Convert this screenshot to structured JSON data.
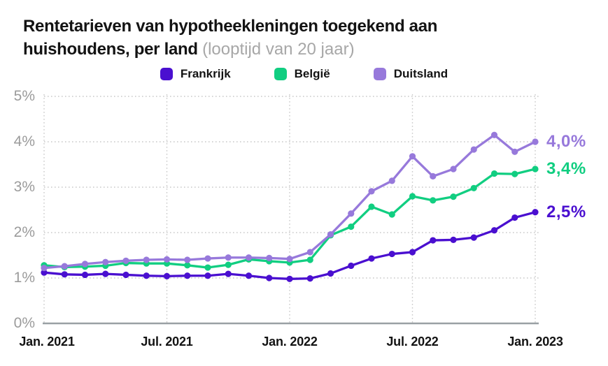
{
  "title": {
    "line1": "Rentetarieven van hypotheekleningen toegekend aan",
    "line2_bold": "huishoudens, per land",
    "subtitle": "(looptijd van 20 jaar)"
  },
  "colors": {
    "frankrijk": "#4a0fd0",
    "belgie": "#11ce81",
    "duitsland": "#9779db",
    "grid": "#c9c9c9",
    "zero_axis": "#9aa0a4",
    "tick_text": "#9b9b9b",
    "title_text": "#131313"
  },
  "chart_data": {
    "type": "line",
    "x_unit": "month",
    "x": [
      "2021-01",
      "2021-02",
      "2021-03",
      "2021-04",
      "2021-05",
      "2021-06",
      "2021-07",
      "2021-08",
      "2021-09",
      "2021-10",
      "2021-11",
      "2021-12",
      "2022-01",
      "2022-02",
      "2022-03",
      "2022-04",
      "2022-05",
      "2022-06",
      "2022-07",
      "2022-08",
      "2022-09",
      "2022-10",
      "2022-11",
      "2022-12",
      "2023-01"
    ],
    "x_tick_labels": [
      "Jan. 2021",
      "Jul. 2021",
      "Jan. 2022",
      "Jul. 2022",
      "Jan. 2023"
    ],
    "x_tick_indices": [
      0,
      6,
      12,
      18,
      24
    ],
    "y_tick_labels": [
      "5%",
      "4%",
      "3%",
      "2%",
      "1%",
      "0%"
    ],
    "ylim": [
      0,
      5
    ],
    "grid": "dotted",
    "legend_position": "top-center",
    "series": [
      {
        "name": "Frankrijk",
        "color": "#4a0fd0",
        "end_label": "2,5%",
        "values": [
          1.12,
          1.08,
          1.07,
          1.09,
          1.07,
          1.05,
          1.04,
          1.05,
          1.05,
          1.09,
          1.05,
          1.0,
          0.98,
          0.99,
          1.1,
          1.27,
          1.43,
          1.53,
          1.57,
          1.83,
          1.84,
          1.89,
          2.05,
          2.33,
          2.45
        ]
      },
      {
        "name": "België",
        "color": "#11ce81",
        "end_label": "3,4%",
        "values": [
          1.28,
          1.24,
          1.25,
          1.27,
          1.33,
          1.32,
          1.32,
          1.28,
          1.23,
          1.29,
          1.41,
          1.37,
          1.34,
          1.4,
          1.94,
          2.13,
          2.57,
          2.4,
          2.8,
          2.71,
          2.79,
          2.98,
          3.3,
          3.29,
          3.4
        ]
      },
      {
        "name": "Duitsland",
        "color": "#9779db",
        "end_label": "4,0%",
        "values": [
          1.22,
          1.26,
          1.31,
          1.35,
          1.38,
          1.4,
          1.41,
          1.4,
          1.43,
          1.45,
          1.45,
          1.44,
          1.42,
          1.57,
          1.96,
          2.42,
          2.91,
          3.14,
          3.68,
          3.24,
          3.4,
          3.83,
          4.15,
          3.78,
          4.0
        ]
      }
    ]
  }
}
